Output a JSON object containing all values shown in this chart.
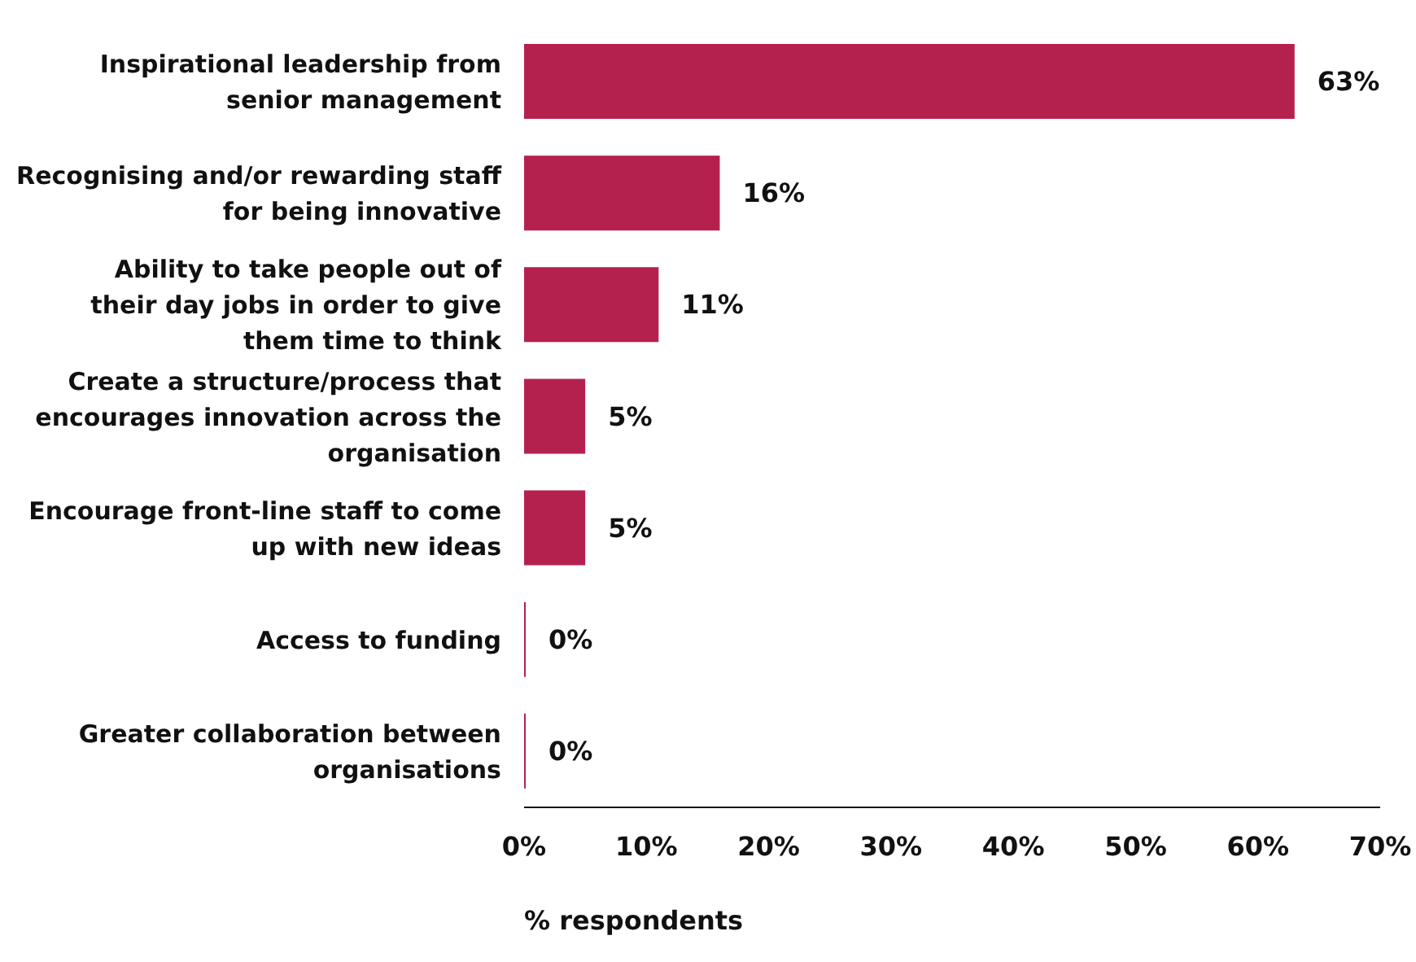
{
  "chart_data": {
    "type": "bar",
    "orientation": "horizontal",
    "categories": [
      "Inspirational leadership from senior management",
      "Recognising and/or rewarding staff for being innovative",
      "Ability to take people out of their day jobs in order to give them time to think",
      "Create a structure/process that encourages innovation across the organisation",
      "Encourage front-line staff to come up with new ideas",
      "Access to funding",
      "Greater collaboration between organisations"
    ],
    "values": [
      63,
      16,
      11,
      5,
      5,
      0,
      0
    ],
    "value_labels": [
      "63%",
      "16%",
      "11%",
      "5%",
      "5%",
      "0%",
      "0%"
    ],
    "color": "#b5214f",
    "xlim": [
      0,
      70
    ],
    "xticks": [
      {
        "value": 0,
        "label": "0%"
      },
      {
        "value": 10,
        "label": "10%"
      },
      {
        "value": 20,
        "label": "20%"
      },
      {
        "value": 30,
        "label": "30%"
      },
      {
        "value": 40,
        "label": "40%"
      },
      {
        "value": 50,
        "label": "50%"
      },
      {
        "value": 60,
        "label": "60%"
      },
      {
        "value": 70,
        "label": "70%"
      }
    ],
    "xlabel": "% respondents",
    "grid": false,
    "legend": false
  }
}
